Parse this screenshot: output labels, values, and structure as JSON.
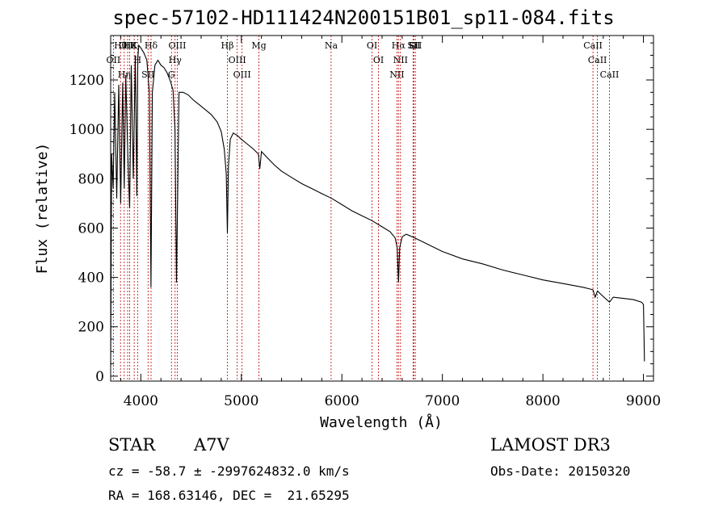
{
  "chart_data": {
    "type": "line",
    "title": "spec-57102-HD111424N200151B01_sp11-084.fits",
    "xlabel": "Wavelength (Å)",
    "ylabel": "Flux (relative)",
    "xlim": [
      3700,
      9100
    ],
    "ylim": [
      -20,
      1380
    ],
    "x_ticks": [
      4000,
      5000,
      6000,
      7000,
      8000,
      9000
    ],
    "x_tick_labels": [
      "4000",
      "5000",
      "6000",
      "7000",
      "8000",
      "9000"
    ],
    "y_ticks": [
      0,
      200,
      400,
      600,
      800,
      1000,
      1200
    ],
    "y_tick_labels": [
      "0",
      "200",
      "400",
      "600",
      "800",
      "1000",
      "1200"
    ],
    "series": [
      {
        "name": "spectrum",
        "x": [
          3700,
          3710,
          3725,
          3740,
          3760,
          3780,
          3800,
          3820,
          3835,
          3850,
          3870,
          3889,
          3905,
          3925,
          3945,
          3960,
          3970,
          3980,
          4000,
          4030,
          4060,
          4085,
          4101,
          4115,
          4140,
          4170,
          4200,
          4230,
          4260,
          4290,
          4320,
          4340,
          4355,
          4380,
          4420,
          4470,
          4520,
          4580,
          4640,
          4700,
          4760,
          4800,
          4830,
          4850,
          4861,
          4872,
          4890,
          4920,
          4960,
          5000,
          5060,
          5120,
          5170,
          5183,
          5200,
          5270,
          5330,
          5400,
          5500,
          5600,
          5700,
          5800,
          5900,
          6000,
          6100,
          6200,
          6300,
          6400,
          6480,
          6530,
          6550,
          6563,
          6575,
          6600,
          6640,
          6700,
          6800,
          6900,
          7000,
          7200,
          7400,
          7600,
          7800,
          8000,
          8200,
          8400,
          8498,
          8520,
          8542,
          8580,
          8662,
          8700,
          8800,
          8900,
          8980,
          9000,
          9010
        ],
        "y": [
          40,
          900,
          760,
          1150,
          720,
          1180,
          700,
          1190,
          760,
          1220,
          900,
          680,
          1260,
          800,
          1300,
          730,
          1290,
          1340,
          1330,
          1310,
          1280,
          1150,
          360,
          1150,
          1260,
          1280,
          1260,
          1250,
          1230,
          1200,
          1160,
          1000,
          380,
          1150,
          1150,
          1140,
          1120,
          1100,
          1080,
          1060,
          1030,
          990,
          920,
          820,
          580,
          850,
          960,
          985,
          975,
          960,
          940,
          920,
          900,
          840,
          910,
          880,
          855,
          830,
          805,
          780,
          760,
          740,
          720,
          695,
          670,
          650,
          630,
          605,
          585,
          560,
          520,
          380,
          520,
          565,
          575,
          565,
          545,
          525,
          505,
          475,
          455,
          430,
          410,
          390,
          375,
          360,
          350,
          320,
          345,
          330,
          300,
          320,
          315,
          310,
          300,
          290,
          60
        ]
      }
    ],
    "line_markers": [
      {
        "label": "Hθ",
        "x": 3798
      },
      {
        "label": "OII",
        "x": 3727
      },
      {
        "label": "Hη",
        "x": 3835
      },
      {
        "label": "OIII",
        "x": 3869
      },
      {
        "label": "Hε",
        "x": 3889
      },
      {
        "label": "K",
        "x": 3934
      },
      {
        "label": "H",
        "x": 3968
      },
      {
        "label": "SII",
        "x": 4072
      },
      {
        "label": "Hδ",
        "x": 4102
      },
      {
        "label": "OIII",
        "x": 4363
      },
      {
        "label": "Hγ",
        "x": 4341
      },
      {
        "label": "G",
        "x": 4305
      },
      {
        "label": "Hβ",
        "x": 4861
      },
      {
        "label": "OIII",
        "x": 4959
      },
      {
        "label": "OIII",
        "x": 5007
      },
      {
        "label": "Mg",
        "x": 5175
      },
      {
        "label": "Na",
        "x": 5893
      },
      {
        "label": "OI",
        "x": 6300
      },
      {
        "label": "OI",
        "x": 6364
      },
      {
        "label": "Hα",
        "x": 6563
      },
      {
        "label": "NII",
        "x": 6548
      },
      {
        "label": "NII",
        "x": 6583
      },
      {
        "label": "Li",
        "x": 6708
      },
      {
        "label": "SII",
        "x": 6716
      },
      {
        "label": "SII",
        "x": 6731
      },
      {
        "label": "CaII",
        "x": 8498
      },
      {
        "label": "CaII",
        "x": 8542
      },
      {
        "label": "CaII",
        "x": 8662
      }
    ]
  },
  "footer": {
    "object_class": "STAR",
    "subclass": "A7V",
    "survey": "LAMOST DR3",
    "cz_text": "cz = -58.7 ± -2997624832.0 km/s",
    "obs_date": "Obs-Date: 20150320",
    "coords": "RA = 168.63146, DEC =  21.65295"
  },
  "colors": {
    "marker": "#c00000",
    "spectrum": "#000000"
  }
}
